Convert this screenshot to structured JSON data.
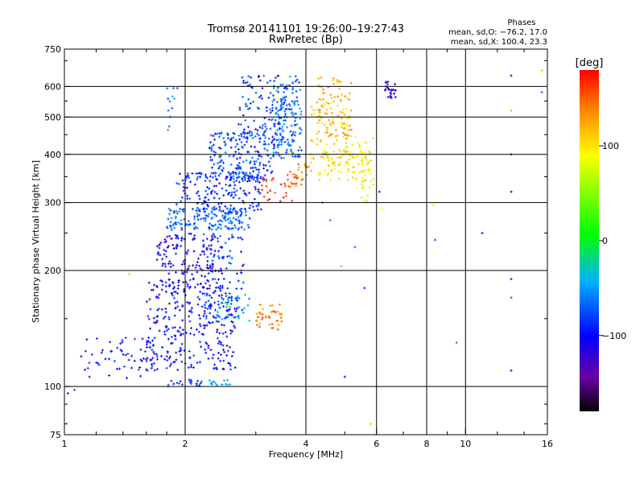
{
  "chart_data": {
    "type": "scatter",
    "title": "Tromsø 20141101 19:26:00–19:27:43",
    "subtitle": "RwPretec (Bp)",
    "stats": {
      "heading": "Phases",
      "line1": "mean, sd,O: −76.2, 17.0",
      "line2": "mean, sd,X: 100.4, 23.3"
    },
    "xlabel": "Frequency [MHz]",
    "ylabel": "Stationary phase Virtual Height [km]",
    "x_scale": "log",
    "y_scale": "log",
    "xlim": [
      1,
      16
    ],
    "ylim": [
      75,
      750
    ],
    "x_ticks": [
      {
        "value": 1,
        "label": "1"
      },
      {
        "value": 2,
        "label": "2"
      },
      {
        "value": 4,
        "label": "4"
      },
      {
        "value": 6,
        "label": "6"
      },
      {
        "value": 8,
        "label": "8"
      },
      {
        "value": 10,
        "label": "10"
      },
      {
        "value": 16,
        "label": "16"
      }
    ],
    "x_gridlines": [
      2,
      4,
      6,
      8,
      10
    ],
    "y_ticks": [
      {
        "value": 75,
        "label": "75"
      },
      {
        "value": 100,
        "label": "100"
      },
      {
        "value": 200,
        "label": "200"
      },
      {
        "value": 300,
        "label": "300"
      },
      {
        "value": 400,
        "label": "400"
      },
      {
        "value": 500,
        "label": "500"
      },
      {
        "value": 600,
        "label": "600"
      },
      {
        "value": 750,
        "label": "750"
      }
    ],
    "y_gridlines": [
      100,
      200,
      300,
      400,
      500,
      600
    ],
    "colorbar": {
      "label": "[deg]",
      "range": [
        -180,
        180
      ],
      "ticks": [
        {
          "value": 100,
          "label": "100"
        },
        {
          "value": 0,
          "label": "0"
        },
        {
          "value": -100,
          "label": "−100"
        }
      ]
    },
    "point_clusters": [
      {
        "x": [
          1.6,
          2.7
        ],
        "y": [
          110,
          190
        ],
        "phase": -100,
        "n": 300
      },
      {
        "x": [
          1.1,
          1.7
        ],
        "y": [
          105,
          135
        ],
        "phase": -95,
        "n": 60
      },
      {
        "x": [
          1.7,
          2.5
        ],
        "y": [
          180,
          250
        ],
        "phase": -105,
        "n": 160
      },
      {
        "x": [
          2.2,
          2.8
        ],
        "y": [
          150,
          250
        ],
        "phase": -80,
        "n": 80
      },
      {
        "x": [
          1.8,
          2.9
        ],
        "y": [
          255,
          290
        ],
        "phase": -70,
        "n": 160
      },
      {
        "x": [
          1.9,
          3.1
        ],
        "y": [
          280,
          360
        ],
        "phase": -90,
        "n": 180
      },
      {
        "x": [
          2.3,
          3.3
        ],
        "y": [
          340,
          460
        ],
        "phase": -80,
        "n": 180
      },
      {
        "x": [
          2.7,
          3.6
        ],
        "y": [
          420,
          640
        ],
        "phase": -85,
        "n": 120
      },
      {
        "x": [
          3.3,
          3.9
        ],
        "y": [
          390,
          640
        ],
        "phase": -65,
        "n": 150
      },
      {
        "x": [
          3.1,
          3.8
        ],
        "y": [
          300,
          350
        ],
        "phase": 165,
        "n": 30
      },
      {
        "x": [
          3.6,
          4.2
        ],
        "y": [
          330,
          380
        ],
        "phase": 140,
        "n": 25
      },
      {
        "x": [
          4.1,
          5.1
        ],
        "y": [
          380,
          560
        ],
        "phase": 110,
        "n": 80
      },
      {
        "x": [
          4.3,
          5.2
        ],
        "y": [
          440,
          640
        ],
        "phase": 120,
        "n": 70
      },
      {
        "x": [
          4.3,
          5.8
        ],
        "y": [
          340,
          410
        ],
        "phase": 100,
        "n": 60
      },
      {
        "x": [
          5.0,
          5.9
        ],
        "y": [
          360,
          450
        ],
        "phase": 95,
        "n": 40
      },
      {
        "x": [
          5.5,
          5.9
        ],
        "y": [
          300,
          370
        ],
        "phase": 80,
        "n": 15
      },
      {
        "x": [
          3.0,
          3.5
        ],
        "y": [
          140,
          165
        ],
        "phase": 140,
        "n": 40
      },
      {
        "x": [
          2.4,
          2.9
        ],
        "y": [
          145,
          175
        ],
        "phase": -40,
        "n": 25
      },
      {
        "x": [
          1.8,
          2.2
        ],
        "y": [
          100,
          104
        ],
        "phase": -80,
        "n": 20
      },
      {
        "x": [
          2.3,
          2.6
        ],
        "y": [
          100,
          104
        ],
        "phase": -50,
        "n": 15
      },
      {
        "x": [
          6.3,
          6.7
        ],
        "y": [
          560,
          620
        ],
        "phase": -110,
        "n": 25
      },
      {
        "x": [
          1.8,
          2.0
        ],
        "y": [
          450,
          600
        ],
        "phase": -60,
        "n": 12
      }
    ],
    "isolated_points": [
      {
        "x": 13,
        "y": 640,
        "phase": -100
      },
      {
        "x": 13,
        "y": 320,
        "phase": -100
      },
      {
        "x": 13,
        "y": 190,
        "phase": -110
      },
      {
        "x": 13,
        "y": 110,
        "phase": -110
      },
      {
        "x": 13,
        "y": 400,
        "phase": -100
      },
      {
        "x": 13,
        "y": 520,
        "phase": 120
      },
      {
        "x": 13,
        "y": 170,
        "phase": -70
      },
      {
        "x": 15.5,
        "y": 660,
        "phase": 110
      },
      {
        "x": 15.5,
        "y": 580,
        "phase": -70
      },
      {
        "x": 9.5,
        "y": 130,
        "phase": -60
      },
      {
        "x": 8.3,
        "y": 295,
        "phase": 100
      },
      {
        "x": 8.4,
        "y": 240,
        "phase": -80
      },
      {
        "x": 11,
        "y": 250,
        "phase": -90
      },
      {
        "x": 5,
        "y": 106,
        "phase": -110
      },
      {
        "x": 4.9,
        "y": 205,
        "phase": 130
      },
      {
        "x": 5.8,
        "y": 80,
        "phase": 110
      },
      {
        "x": 5.6,
        "y": 180,
        "phase": -90
      },
      {
        "x": 6.1,
        "y": 320,
        "phase": -110
      },
      {
        "x": 6.2,
        "y": 290,
        "phase": 90
      },
      {
        "x": 4.4,
        "y": 300,
        "phase": -70
      },
      {
        "x": 1.45,
        "y": 196,
        "phase": 110
      },
      {
        "x": 1.02,
        "y": 96,
        "phase": -100
      },
      {
        "x": 1.06,
        "y": 98,
        "phase": -80
      },
      {
        "x": 4.6,
        "y": 270,
        "phase": -60
      },
      {
        "x": 5.3,
        "y": 230,
        "phase": -70
      }
    ]
  }
}
